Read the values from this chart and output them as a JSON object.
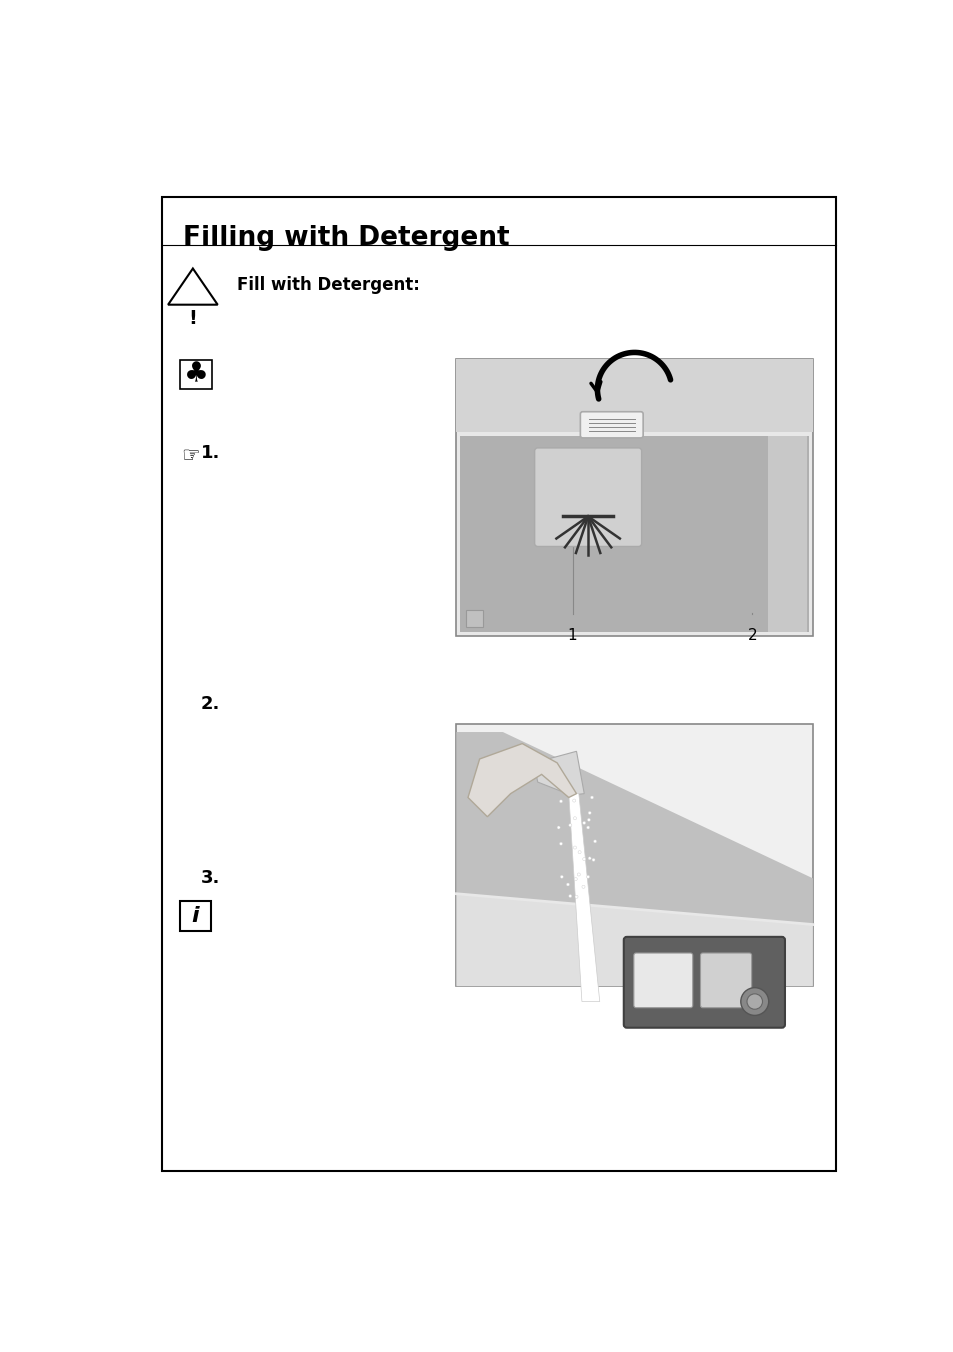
{
  "title": "Filling with Detergent",
  "warning_text": "Fill with Detergent:",
  "step1_label": "1.",
  "step2_label": "2.",
  "step3_label": "3.",
  "border_color": "#000000",
  "bg_color": "#ffffff",
  "text_color": "#000000",
  "gray_light": "#d8d8d8",
  "gray_mid": "#b0b0b0",
  "gray_dark": "#888888",
  "img1_bg": "#c8c8c8",
  "img1_top": "#d8d8d8",
  "img1_inner": "#b8b8b8",
  "img2_bg": "#e0e0e0"
}
